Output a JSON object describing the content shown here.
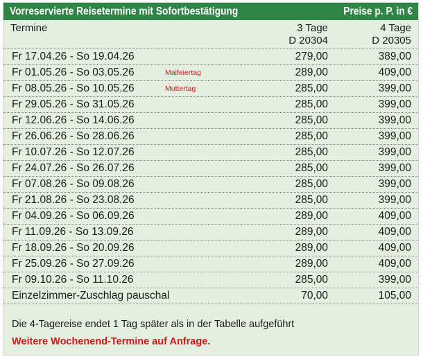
{
  "header": {
    "title": "Vorreservierte Reisetermine mit Sofortbestätigung",
    "price_note": "Preise p. P. in €"
  },
  "table": {
    "col_termine": "Termine",
    "col3_line1": "3 Tage",
    "col3_line2": "D 20304",
    "col4_line1": "4 Tage",
    "col4_line2": "D 20305",
    "rows": [
      {
        "date": "Fr   17.04.26 - So  19.04.26",
        "note": "",
        "price3": "279,00",
        "price4": "389,00"
      },
      {
        "date": "Fr   01.05.26 - So  03.05.26",
        "note": "Maifeiertag",
        "price3": "289,00",
        "price4": "409,00"
      },
      {
        "date": "Fr   08.05.26 - So  10.05.26",
        "note": "Muttertag",
        "price3": "285,00",
        "price4": "399,00"
      },
      {
        "date": "Fr   29.05.26 - So  31.05.26",
        "note": "",
        "price3": "285,00",
        "price4": "399,00"
      },
      {
        "date": "Fr   12.06.26 - So  14.06.26",
        "note": "",
        "price3": "285,00",
        "price4": "399,00"
      },
      {
        "date": "Fr   26.06.26 - So  28.06.26",
        "note": "",
        "price3": "285,00",
        "price4": "399,00"
      },
      {
        "date": "Fr   10.07.26 - So  12.07.26",
        "note": "",
        "price3": "285,00",
        "price4": "399,00"
      },
      {
        "date": "Fr   24.07.26 - So  26.07.26",
        "note": "",
        "price3": "285,00",
        "price4": "399,00"
      },
      {
        "date": "Fr   07.08.26 - So  09.08.26",
        "note": "",
        "price3": "285,00",
        "price4": "399,00"
      },
      {
        "date": "Fr   21.08.26 - So  23.08.26",
        "note": "",
        "price3": "285,00",
        "price4": "399,00"
      },
      {
        "date": "Fr   04.09.26 - So  06.09.26",
        "note": "",
        "price3": "289,00",
        "price4": "409,00"
      },
      {
        "date": "Fr   11.09.26 - So  13.09.26",
        "note": "",
        "price3": "289,00",
        "price4": "409,00"
      },
      {
        "date": "Fr   18.09.26 - So  20.09.26",
        "note": "",
        "price3": "289,00",
        "price4": "409,00"
      },
      {
        "date": "Fr   25.09.26 - So  27.09.26",
        "note": "",
        "price3": "289,00",
        "price4": "409,00"
      },
      {
        "date": "Fr   09.10.26 - So  11.10.26",
        "note": "",
        "price3": "285,00",
        "price4": "399,00"
      },
      {
        "date": "Einzelzimmer-Zuschlag pauschal",
        "note": "",
        "price3": "70,00",
        "price4": "105,00"
      }
    ]
  },
  "footer": {
    "note": "Die 4-Tagereise endet 1 Tag später als in der Tabelle aufgeführt",
    "request": "Weitere Wochenend-Termine auf Anfrage."
  }
}
